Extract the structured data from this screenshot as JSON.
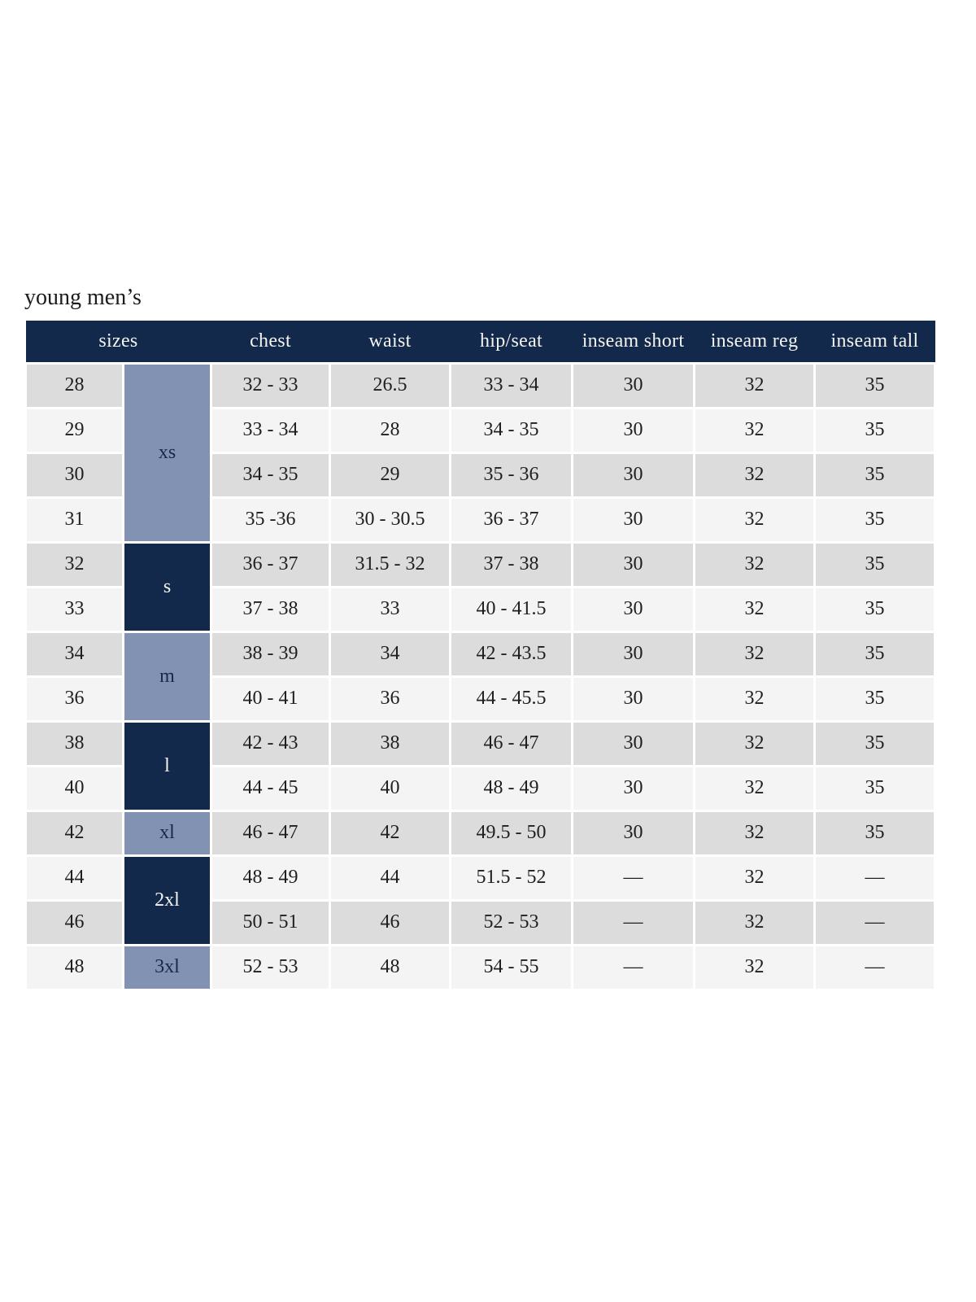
{
  "page": {
    "title": "young men’s"
  },
  "colors": {
    "header_navy": "#12294b",
    "group_blue_gray": "#8292b2",
    "row_dark": "#dcdcdc",
    "row_light": "#f4f4f4",
    "header_text": "#f5f4f0",
    "cell_text": "#1f1f1f"
  },
  "table": {
    "columns": [
      "sizes",
      "chest",
      "waist",
      "hip/seat",
      "inseam short",
      "inseam reg",
      "inseam tall"
    ],
    "groups": [
      {
        "label": "xs",
        "span": 4,
        "tone": "light"
      },
      {
        "label": "s",
        "span": 2,
        "tone": "dark"
      },
      {
        "label": "m",
        "span": 2,
        "tone": "light"
      },
      {
        "label": "l",
        "span": 2,
        "tone": "dark"
      },
      {
        "label": "xl",
        "span": 1,
        "tone": "light"
      },
      {
        "label": "2xl",
        "span": 2,
        "tone": "dark"
      },
      {
        "label": "3xl",
        "span": 1,
        "tone": "light"
      }
    ],
    "rows": [
      {
        "size": "28",
        "chest": "32 - 33",
        "waist": "26.5",
        "hip_seat": "33 - 34",
        "inseam_short": "30",
        "inseam_reg": "32",
        "inseam_tall": "35"
      },
      {
        "size": "29",
        "chest": "33 - 34",
        "waist": "28",
        "hip_seat": "34 - 35",
        "inseam_short": "30",
        "inseam_reg": "32",
        "inseam_tall": "35"
      },
      {
        "size": "30",
        "chest": "34 - 35",
        "waist": "29",
        "hip_seat": "35 - 36",
        "inseam_short": "30",
        "inseam_reg": "32",
        "inseam_tall": "35"
      },
      {
        "size": "31",
        "chest": "35 -36",
        "waist": "30 - 30.5",
        "hip_seat": "36 - 37",
        "inseam_short": "30",
        "inseam_reg": "32",
        "inseam_tall": "35"
      },
      {
        "size": "32",
        "chest": "36 - 37",
        "waist": "31.5 - 32",
        "hip_seat": "37 - 38",
        "inseam_short": "30",
        "inseam_reg": "32",
        "inseam_tall": "35"
      },
      {
        "size": "33",
        "chest": "37 - 38",
        "waist": "33",
        "hip_seat": "40 - 41.5",
        "inseam_short": "30",
        "inseam_reg": "32",
        "inseam_tall": "35"
      },
      {
        "size": "34",
        "chest": "38 - 39",
        "waist": "34",
        "hip_seat": "42 - 43.5",
        "inseam_short": "30",
        "inseam_reg": "32",
        "inseam_tall": "35"
      },
      {
        "size": "36",
        "chest": "40 - 41",
        "waist": "36",
        "hip_seat": "44 - 45.5",
        "inseam_short": "30",
        "inseam_reg": "32",
        "inseam_tall": "35"
      },
      {
        "size": "38",
        "chest": "42 - 43",
        "waist": "38",
        "hip_seat": "46 - 47",
        "inseam_short": "30",
        "inseam_reg": "32",
        "inseam_tall": "35"
      },
      {
        "size": "40",
        "chest": "44 - 45",
        "waist": "40",
        "hip_seat": "48 - 49",
        "inseam_short": "30",
        "inseam_reg": "32",
        "inseam_tall": "35"
      },
      {
        "size": "42",
        "chest": "46 - 47",
        "waist": "42",
        "hip_seat": "49.5 - 50",
        "inseam_short": "30",
        "inseam_reg": "32",
        "inseam_tall": "35"
      },
      {
        "size": "44",
        "chest": "48 - 49",
        "waist": "44",
        "hip_seat": "51.5 - 52",
        "inseam_short": "—",
        "inseam_reg": "32",
        "inseam_tall": "—"
      },
      {
        "size": "46",
        "chest": "50 - 51",
        "waist": "46",
        "hip_seat": "52 - 53",
        "inseam_short": "—",
        "inseam_reg": "32",
        "inseam_tall": "—"
      },
      {
        "size": "48",
        "chest": "52 - 53",
        "waist": "48",
        "hip_seat": "54 - 55",
        "inseam_short": "—",
        "inseam_reg": "32",
        "inseam_tall": "—"
      }
    ]
  }
}
